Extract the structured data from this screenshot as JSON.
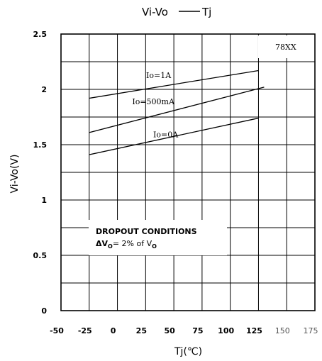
{
  "chart_data": {
    "type": "line",
    "title_main": "Vi-Vo",
    "title_suffix": "Tj",
    "xlabel": "Tj(℃)",
    "ylabel": "Vi-Vo(V)",
    "model_label": "78XX",
    "x_ticks": [
      "-50",
      "-25",
      "0",
      "25",
      "50",
      "75",
      "100",
      "125",
      "150",
      "175"
    ],
    "y_ticks": [
      "0",
      "0.5",
      "1",
      "1.5",
      "2",
      "2.5"
    ],
    "xlim": [
      -50,
      175
    ],
    "ylim": [
      0,
      2.5
    ],
    "grid": true,
    "series": [
      {
        "name": "Io=1A",
        "x": [
          -25,
          125
        ],
        "y": [
          1.92,
          2.17
        ]
      },
      {
        "name": "Io=500mA",
        "x": [
          -25,
          130
        ],
        "y": [
          1.61,
          2.02
        ]
      },
      {
        "name": "Io=0A",
        "x": [
          -25,
          125
        ],
        "y": [
          1.41,
          1.74
        ]
      }
    ],
    "annotation": {
      "line1": "DROPOUT CONDITIONS",
      "line2_prefix": "ΔV",
      "line2_sub": "O",
      "line2_mid": "= 2% of V",
      "line2_sub2": "O"
    }
  }
}
